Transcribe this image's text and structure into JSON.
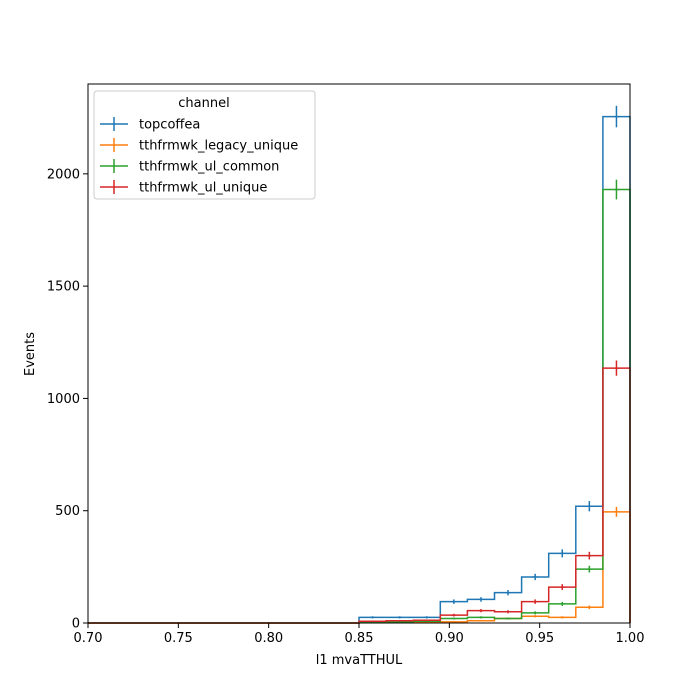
{
  "chart_data": {
    "type": "line",
    "style": "step-histogram-with-errorbars",
    "xlabel": "l1 mvaTTHUL",
    "ylabel": "Events",
    "xlim": [
      0.7,
      1.0
    ],
    "ylim": [
      0,
      2400
    ],
    "x_ticks": [
      "0.70",
      "0.75",
      "0.80",
      "0.85",
      "0.90",
      "0.95",
      "1.00"
    ],
    "y_ticks": [
      "0",
      "500",
      "1000",
      "1500",
      "2000"
    ],
    "bin_edges": [
      0.7,
      0.715,
      0.73,
      0.745,
      0.76,
      0.775,
      0.79,
      0.805,
      0.82,
      0.835,
      0.85,
      0.865,
      0.88,
      0.895,
      0.91,
      0.925,
      0.94,
      0.955,
      0.97,
      0.985,
      1.0
    ],
    "legend": {
      "title": "channel",
      "placement": "upper-left"
    },
    "series": [
      {
        "name": "topcoffea",
        "color": "#1f77b4",
        "values": [
          0,
          0,
          0,
          0,
          0,
          0,
          0,
          0,
          0,
          0,
          25,
          25,
          25,
          95,
          105,
          135,
          205,
          310,
          520,
          2255
        ],
        "errors": [
          0,
          0,
          0,
          0,
          0,
          0,
          0,
          0,
          0,
          0,
          5,
          5,
          5,
          10,
          10,
          12,
          14,
          18,
          23,
          48
        ]
      },
      {
        "name": "tthfrmwk_legacy_unique",
        "color": "#ff7f0e",
        "values": [
          0,
          0,
          0,
          0,
          0,
          0,
          0,
          0,
          0,
          0,
          2,
          2,
          3,
          5,
          10,
          20,
          30,
          25,
          70,
          495
        ],
        "errors": [
          0,
          0,
          0,
          0,
          0,
          0,
          0,
          0,
          0,
          0,
          1,
          1,
          2,
          2,
          3,
          4,
          5,
          5,
          8,
          22
        ]
      },
      {
        "name": "tthfrmwk_ul_common",
        "color": "#2ca02c",
        "values": [
          0,
          0,
          0,
          0,
          0,
          0,
          0,
          0,
          0,
          0,
          3,
          5,
          8,
          20,
          25,
          20,
          45,
          85,
          240,
          1930
        ],
        "errors": [
          0,
          0,
          0,
          0,
          0,
          0,
          0,
          0,
          0,
          0,
          2,
          2,
          3,
          4,
          5,
          4,
          7,
          9,
          15,
          44
        ]
      },
      {
        "name": "tthfrmwk_ul_unique",
        "color": "#d62728",
        "values": [
          0,
          0,
          0,
          0,
          0,
          0,
          0,
          0,
          0,
          0,
          8,
          10,
          12,
          35,
          55,
          50,
          95,
          160,
          300,
          1135
        ],
        "errors": [
          0,
          0,
          0,
          0,
          0,
          0,
          0,
          0,
          0,
          0,
          3,
          3,
          3,
          6,
          7,
          7,
          10,
          13,
          17,
          34
        ]
      }
    ]
  }
}
